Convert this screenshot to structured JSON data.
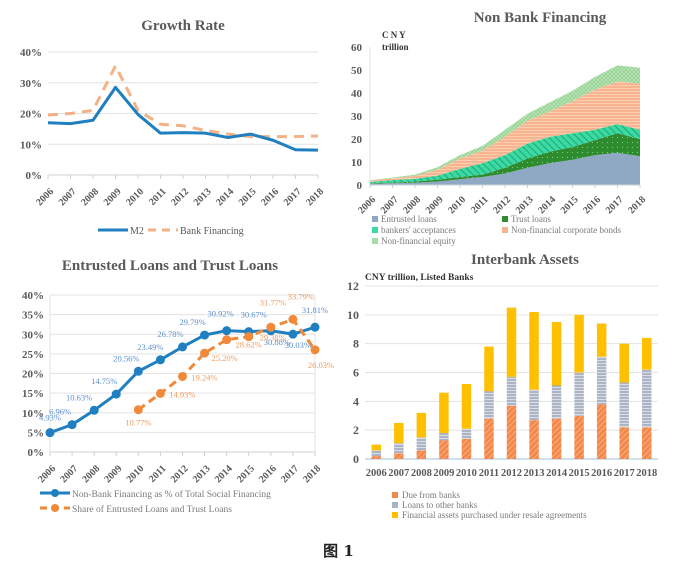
{
  "figure_caption": "图 1",
  "chart_data": [
    {
      "id": "growth",
      "type": "line",
      "title": "Growth Rate",
      "xlabel": "",
      "ylabel": "",
      "x": [
        "2006",
        "2007",
        "2008",
        "2009",
        "2010",
        "2011",
        "2012",
        "2013",
        "2014",
        "2015",
        "2016",
        "2017",
        "2018"
      ],
      "ylim": [
        0,
        40
      ],
      "yticks": [
        "0%",
        "10%",
        "20%",
        "30%",
        "40%"
      ],
      "ytick_values": [
        0,
        10,
        20,
        30,
        40
      ],
      "grid": true,
      "legend": "bottom",
      "series": [
        {
          "name": "M2",
          "style": "solid",
          "color": "#1f7fc0",
          "values": [
            17.0,
            16.7,
            17.8,
            28.5,
            19.7,
            13.6,
            13.8,
            13.6,
            12.2,
            13.3,
            11.3,
            8.2,
            8.1
          ]
        },
        {
          "name": "Bank Financing",
          "style": "dashed",
          "color": "#f4b183",
          "values": [
            19.5,
            20.0,
            21.0,
            35.5,
            21.0,
            16.5,
            16.0,
            14.5,
            13.3,
            12.5,
            12.5,
            12.5,
            12.7
          ]
        }
      ]
    },
    {
      "id": "nonbank",
      "type": "area",
      "stacked": true,
      "title": "Non Bank Financing",
      "unit_label": [
        "C   N   Y",
        "trillion"
      ],
      "x": [
        "2006",
        "2007",
        "2008",
        "2009",
        "2010",
        "2011",
        "2012",
        "2013",
        "2014",
        "2015",
        "2016",
        "2017",
        "2018"
      ],
      "ylim": [
        0,
        60
      ],
      "yticks": [
        "0",
        "10",
        "20",
        "30",
        "40",
        "50",
        "60"
      ],
      "ytick_values": [
        0,
        10,
        20,
        30,
        40,
        50,
        60
      ],
      "grid": false,
      "legend": "bottom",
      "series": [
        {
          "name": "Entrusted loans",
          "color": "#8fa9c4",
          "values": [
            0.5,
            0.8,
            1.0,
            1.5,
            2.5,
            3.5,
            5.0,
            7.5,
            9.5,
            11.0,
            13.0,
            14.0,
            12.5
          ]
        },
        {
          "name": "Trust loans",
          "color": "#2e8b2e",
          "values": [
            0.2,
            0.3,
            0.5,
            0.8,
            1.0,
            1.0,
            2.5,
            4.0,
            5.0,
            5.5,
            6.5,
            8.5,
            7.5
          ]
        },
        {
          "name": "bankers'  acceptances",
          "color": "#2fd39a",
          "values": [
            0.6,
            1.0,
            1.2,
            1.8,
            3.5,
            5.0,
            5.5,
            6.5,
            6.5,
            6.0,
            4.5,
            4.0,
            4.0
          ]
        },
        {
          "name": "Non-financial corporate bonds",
          "color": "#f8b48e",
          "values": [
            0.6,
            0.8,
            1.2,
            2.6,
            4.5,
            5.5,
            8.0,
            10.0,
            11.0,
            14.0,
            17.5,
            18.5,
            20.0
          ]
        },
        {
          "name": "Non-financial equity",
          "color": "#a8dca6",
          "values": [
            0.2,
            0.3,
            0.6,
            1.0,
            1.5,
            2.0,
            3.0,
            3.0,
            4.0,
            4.5,
            5.5,
            7.0,
            7.0
          ]
        }
      ]
    },
    {
      "id": "entrusted",
      "type": "line",
      "title": "Entrusted Loans and Trust Loans",
      "x": [
        "2006",
        "2007",
        "2008",
        "2009",
        "2010",
        "2011",
        "2012",
        "2013",
        "2014",
        "2015",
        "2016",
        "2017",
        "2018"
      ],
      "ylim": [
        0,
        40
      ],
      "yticks": [
        "0%",
        "5%",
        "10%",
        "15%",
        "20%",
        "25%",
        "30%",
        "35%",
        "40%"
      ],
      "ytick_values": [
        0,
        5,
        10,
        15,
        20,
        25,
        30,
        35,
        40
      ],
      "grid": true,
      "legend": "bottom",
      "series": [
        {
          "name": "Non-Bank Financing as % of Total Social Financing",
          "style": "solid",
          "color": "#1f7fc0",
          "values": [
            4.93,
            6.96,
            10.63,
            14.75,
            20.56,
            23.49,
            26.78,
            29.79,
            30.92,
            30.67,
            30.88,
            30.03,
            31.81
          ],
          "labels": [
            "4.93%",
            "6.96%",
            "10.63%",
            "14.75%",
            "20.56%",
            "23.49%",
            "26.78%",
            "29.79%",
            "30.92%",
            "30.67%",
            "30.88%",
            "30.03%",
            "31.81%"
          ]
        },
        {
          "name": "Share of Entrusted Loans and Trust Loans",
          "style": "dashed",
          "color": "#f08a3a",
          "values": [
            null,
            null,
            null,
            null,
            10.77,
            14.93,
            19.24,
            25.2,
            28.62,
            29.38,
            31.77,
            33.79,
            26.03
          ],
          "labels": [
            null,
            null,
            null,
            null,
            "10.77%",
            "14.93%",
            "19.24%",
            "25.20%",
            "28.62%",
            "29.38%",
            "31.77%",
            "33.79%",
            "26.03%"
          ]
        }
      ]
    },
    {
      "id": "interbank",
      "type": "bar",
      "stacked": true,
      "title": "Interbank Assets",
      "subtitle": "CNY trillion,  Listed Banks",
      "categories": [
        "2006",
        "2007",
        "2008",
        "2009",
        "2010",
        "2011",
        "2012",
        "2013",
        "2014",
        "2015",
        "2016",
        "2017",
        "2018"
      ],
      "ylim": [
        0,
        12
      ],
      "yticks": [
        "0",
        "2",
        "4",
        "6",
        "8",
        "10",
        "12"
      ],
      "ytick_values": [
        0,
        2,
        4,
        6,
        8,
        10,
        12
      ],
      "grid": true,
      "legend": "bottom",
      "series": [
        {
          "name": "Due from banks",
          "color": "#f4884a",
          "values": [
            0.2,
            0.4,
            0.6,
            1.3,
            1.4,
            2.8,
            3.7,
            2.7,
            2.8,
            3.0,
            3.8,
            2.2,
            2.2
          ]
        },
        {
          "name": "Loans to other banks",
          "color": "#a9b4c8",
          "values": [
            0.4,
            0.7,
            0.9,
            0.5,
            0.7,
            1.9,
            2.0,
            2.1,
            2.3,
            3.0,
            3.3,
            3.1,
            4.0
          ]
        },
        {
          "name": "Financial assets purchased under resale agreements",
          "color": "#ffc000",
          "values": [
            0.4,
            1.4,
            1.7,
            2.8,
            3.1,
            3.1,
            4.8,
            5.4,
            4.4,
            4.0,
            2.3,
            2.7,
            2.2
          ]
        }
      ]
    }
  ]
}
